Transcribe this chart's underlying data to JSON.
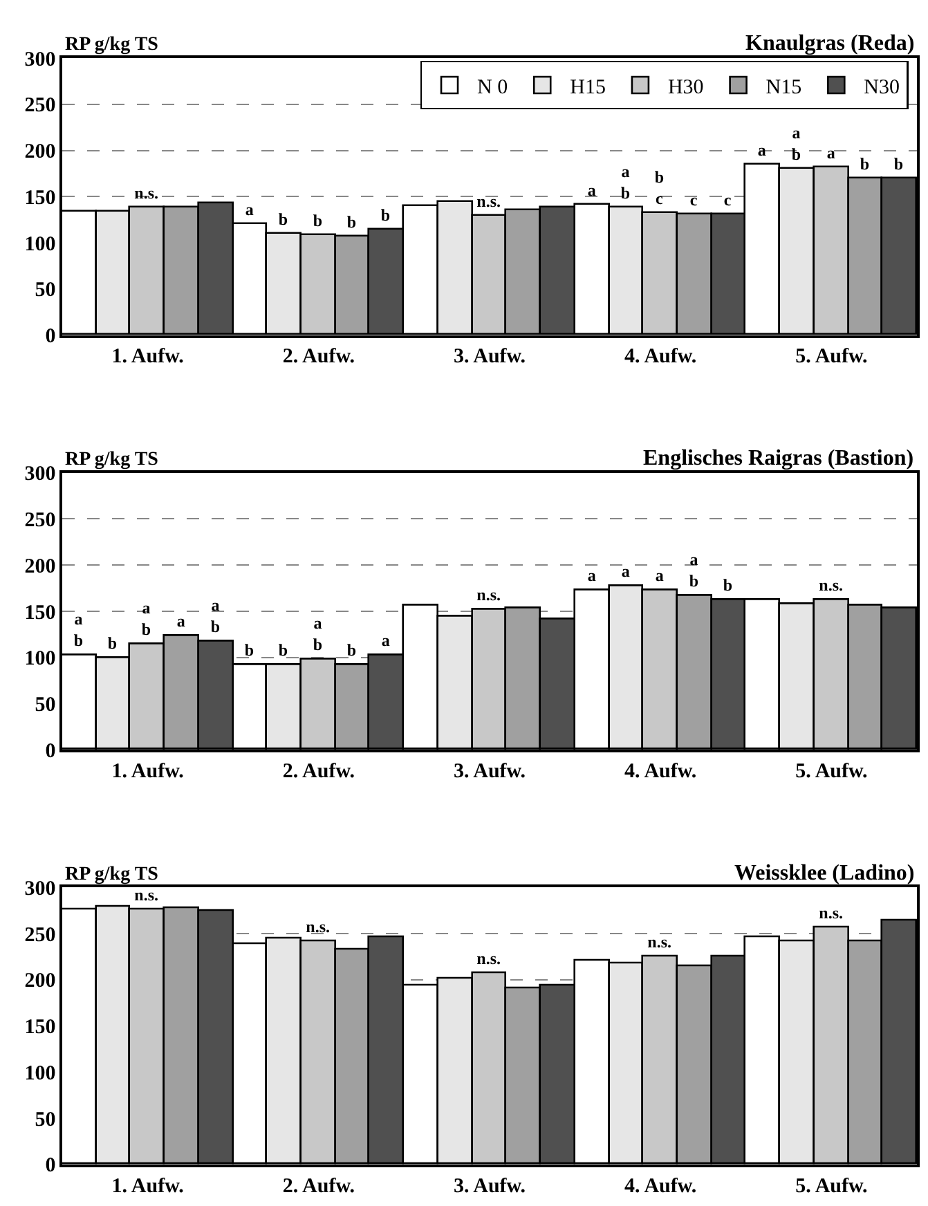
{
  "chart_data": [
    {
      "type": "bar",
      "title": "Knaulgras (Reda)",
      "ylabel": "RP g/kg TS",
      "categories": [
        "1. Aufw.",
        "2. Aufw.",
        "3. Aufw.",
        "4. Aufw.",
        "5. Aufw."
      ],
      "ylim": [
        0,
        300
      ],
      "yticks": [
        0,
        50,
        100,
        150,
        200,
        250,
        300
      ],
      "grid": "y",
      "legend": "top right",
      "series": [
        {
          "name": "N 0",
          "color": "#ffffff",
          "values": [
            134,
            120,
            140,
            141,
            184
          ],
          "value_labels": [
            null,
            "a",
            null,
            "a",
            "a"
          ]
        },
        {
          "name": "H15",
          "color": "#e6e6e6",
          "values": [
            134,
            110,
            145,
            138,
            180
          ],
          "value_labels": [
            null,
            "b",
            null,
            "a\nb",
            "a\nb"
          ]
        },
        {
          "name": "H30",
          "color": "#c8c8c8",
          "values": [
            139,
            109,
            130,
            132,
            182
          ],
          "value_labels": [
            "n.s.",
            "b",
            "n.s.",
            "b\nc",
            "a"
          ]
        },
        {
          "name": "N15",
          "color": "#a0a0a0",
          "values": [
            138,
            107,
            135,
            131,
            170
          ],
          "value_labels": [
            null,
            "b",
            null,
            "c",
            "b"
          ]
        },
        {
          "name": "N30",
          "color": "#505050",
          "values": [
            143,
            114,
            139,
            131,
            170
          ],
          "value_labels": [
            null,
            "b",
            null,
            "c",
            "b"
          ]
        }
      ]
    },
    {
      "type": "bar",
      "title": "Englisches Raigras (Bastion)",
      "ylabel": "RP g/kg TS",
      "categories": [
        "1. Aufw.",
        "2. Aufw.",
        "3. Aufw.",
        "4. Aufw.",
        "5. Aufw."
      ],
      "ylim": [
        0,
        300
      ],
      "yticks": [
        0,
        50,
        100,
        150,
        200,
        250,
        300
      ],
      "grid": "y",
      "series": [
        {
          "color": "#ffffff",
          "values": [
            102,
            92,
            156,
            173,
            162
          ],
          "value_labels": [
            "a\nb",
            "b",
            null,
            "a",
            null
          ]
        },
        {
          "color": "#e6e6e6",
          "values": [
            99,
            92,
            144,
            177,
            158
          ],
          "value_labels": [
            "b",
            "b",
            null,
            "a",
            null
          ]
        },
        {
          "color": "#c8c8c8",
          "values": [
            114,
            98,
            152,
            173,
            162
          ],
          "value_labels": [
            "a\nb",
            "a\nb",
            "n.s.",
            "a",
            "n.s."
          ]
        },
        {
          "color": "#a0a0a0",
          "values": [
            123,
            92,
            153,
            167,
            156
          ],
          "value_labels": [
            "a",
            "b",
            null,
            "a\nb",
            null
          ]
        },
        {
          "color": "#505050",
          "values": [
            117,
            103,
            142,
            162,
            153
          ],
          "value_labels": [
            "a\nb",
            "a",
            null,
            "b",
            null
          ]
        }
      ]
    },
    {
      "type": "bar",
      "title": "Weissklee (Ladino)",
      "ylabel": "RP g/kg TS",
      "categories": [
        "1. Aufw.",
        "2. Aufw.",
        "3. Aufw.",
        "4. Aufw.",
        "5. Aufw."
      ],
      "ylim": [
        0,
        300
      ],
      "yticks": [
        0,
        50,
        100,
        150,
        200,
        250,
        300
      ],
      "grid": "y",
      "series": [
        {
          "color": "#ffffff",
          "values": [
            276,
            238,
            193,
            220,
            246
          ]
        },
        {
          "color": "#e6e6e6",
          "values": [
            279,
            244,
            201,
            217,
            242
          ]
        },
        {
          "color": "#c8c8c8",
          "values": [
            276,
            241,
            207,
            225,
            256
          ],
          "value_labels": [
            "n.s.",
            "n.s.",
            "n.s.",
            "n.s.",
            "n.s."
          ]
        },
        {
          "color": "#a0a0a0",
          "values": [
            277,
            232,
            190,
            214,
            242
          ]
        },
        {
          "color": "#505050",
          "values": [
            274,
            246,
            193,
            225,
            264
          ]
        }
      ]
    }
  ]
}
